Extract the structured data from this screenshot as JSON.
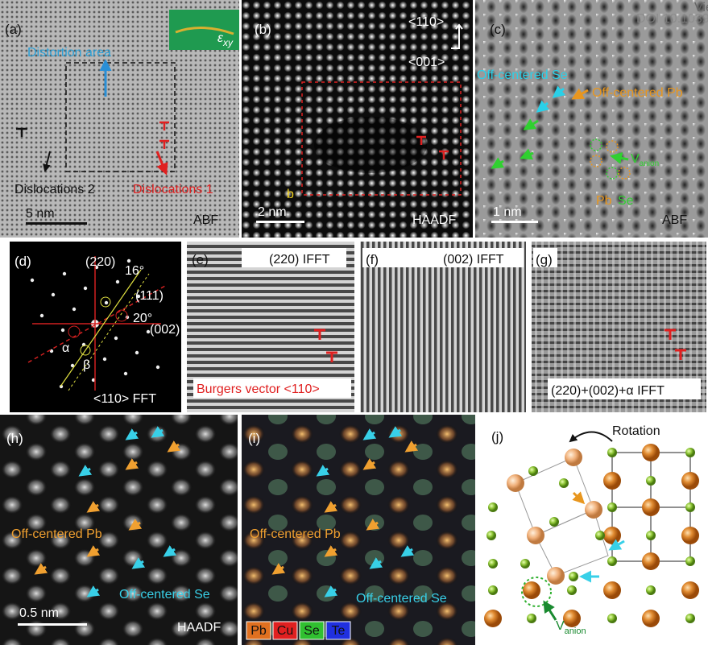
{
  "watermark": {
    "line1": "Vie",
    "line2": "DOI 10.1039"
  },
  "panels": {
    "a": {
      "label": "(a)",
      "distortion": "Distortion area",
      "strain": "ε",
      "strain_sub": "xy",
      "dislocations_2": "Dislocations 2",
      "dislocations_1": "Dislocations 1",
      "scale": "5 nm",
      "mode": "ABF"
    },
    "b": {
      "label": "(b)",
      "dir_1": "<110>",
      "dir_2": "<001>",
      "burgers": "b",
      "scale": "2 nm",
      "mode": "HAADF"
    },
    "c": {
      "label": "(c)",
      "se": "Off-centered Se",
      "pb": "Off-centered Pb",
      "vacancy": "V",
      "vacancy_sub": "anion",
      "pb_site": "Pb",
      "se_site": "Se",
      "scale": "1 nm",
      "mode": "ABF"
    },
    "d": {
      "label": "(d)",
      "spot_220": "(220)",
      "angle_1": "16°",
      "spot_111": "(111)",
      "angle_2": "20°",
      "spot_002": "(002)",
      "alpha": "α",
      "beta": "β",
      "caption": "<110> FFT"
    },
    "e": {
      "label": "(e)",
      "caption": "(220) IFFT",
      "burgers": "Burgers vector <110>"
    },
    "f": {
      "label": "(f)",
      "caption": "(002) IFFT"
    },
    "g": {
      "label": "(g)",
      "caption": "(220)+(002)+α IFFT"
    },
    "h": {
      "label": "(h)",
      "pb": "Off-centered Pb",
      "se": "Off-centered Se",
      "scale": "0.5 nm",
      "mode": "HAADF"
    },
    "i": {
      "label": "(i)",
      "pb": "Off-centered Pb",
      "se": "Off-centered Se",
      "legend": [
        "Pb",
        "Cu",
        "Se",
        "Te"
      ]
    },
    "j": {
      "label": "(j)",
      "rotation": "Rotation",
      "vacancy": "V",
      "vacancy_sub": "anion"
    }
  }
}
